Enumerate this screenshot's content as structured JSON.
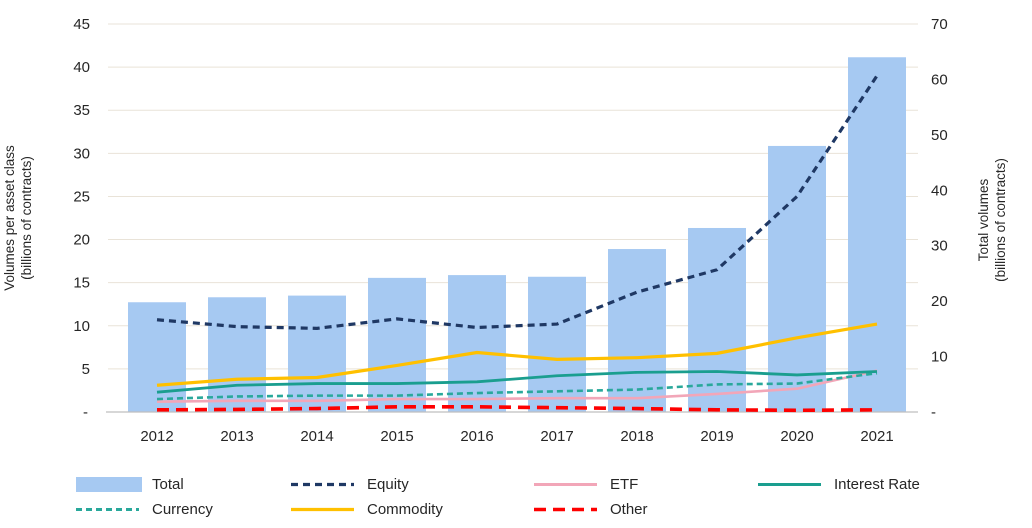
{
  "chart_data": {
    "type": "combo_bar_line",
    "title": "",
    "categories": [
      "2012",
      "2013",
      "2014",
      "2015",
      "2016",
      "2017",
      "2018",
      "2019",
      "2020",
      "2021"
    ],
    "bar_series": {
      "name": "Total",
      "axis": "right",
      "color": "#A6C9F2",
      "values": [
        19.8,
        20.7,
        21.0,
        24.2,
        24.7,
        24.4,
        29.4,
        33.2,
        48.0,
        64.0
      ]
    },
    "line_series": [
      {
        "name": "ETF",
        "color": "#F2A6B8",
        "width": 2.6,
        "dash": "",
        "values": [
          1.2,
          1.3,
          1.3,
          1.5,
          1.5,
          1.6,
          1.6,
          2.1,
          2.7,
          4.8
        ]
      },
      {
        "name": "Currency",
        "color": "#29A89B",
        "width": 2.6,
        "dash": "6 4",
        "values": [
          1.5,
          1.8,
          1.9,
          1.9,
          2.2,
          2.4,
          2.6,
          3.2,
          3.3,
          4.5
        ]
      },
      {
        "name": "Interest Rate",
        "color": "#1A9E8F",
        "width": 2.8,
        "dash": "",
        "values": [
          2.3,
          3.1,
          3.3,
          3.3,
          3.5,
          4.2,
          4.6,
          4.7,
          4.3,
          4.7
        ]
      },
      {
        "name": "Commodity",
        "color": "#FFC000",
        "width": 3.2,
        "dash": "",
        "values": [
          3.1,
          3.8,
          4.0,
          5.4,
          6.9,
          6.1,
          6.3,
          6.8,
          8.6,
          10.2
        ]
      },
      {
        "name": "Equity",
        "color": "#1F3864",
        "width": 3.2,
        "dash": "7 5",
        "values": [
          10.7,
          9.9,
          9.7,
          10.8,
          9.8,
          10.2,
          13.9,
          16.5,
          25.0,
          39.0
        ]
      },
      {
        "name": "Other",
        "color": "#FE0000",
        "width": 3.6,
        "dash": "12 7",
        "values": [
          0.25,
          0.3,
          0.4,
          0.6,
          0.6,
          0.5,
          0.4,
          0.25,
          0.2,
          0.25
        ]
      }
    ],
    "left_axis": {
      "title_line1": "Volumes per asset class",
      "title_line2": "(billions of contracts)",
      "min": 0,
      "max": 45,
      "step": 5,
      "zero_label": "-",
      "grid": true
    },
    "right_axis": {
      "title_line1": "Total volumes",
      "title_line2": "(billions of contracts)",
      "min": 0,
      "max": 70,
      "step": 10,
      "zero_label": "-",
      "grid": false
    },
    "legend_rows": [
      [
        "Total",
        "Equity",
        "ETF",
        "Interest Rate"
      ],
      [
        "Currency",
        "Commodity",
        "Other"
      ]
    ],
    "layout_hints": {
      "legend_position": "bottom",
      "gridlines": "horizontal-only",
      "grid_color": "#E9E3D8",
      "axis_line_color": "#BFBFBF"
    }
  }
}
